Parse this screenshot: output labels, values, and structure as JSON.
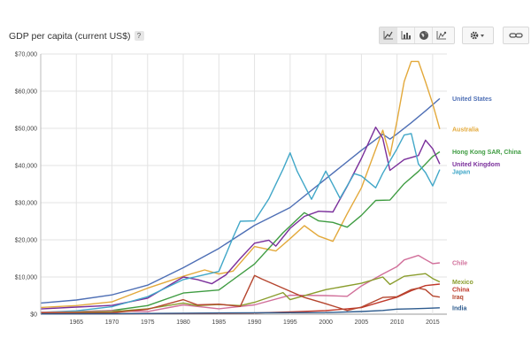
{
  "header": {
    "title": "GDP per capita (current US$)",
    "help": "?"
  },
  "toolbar": {
    "buttons": [
      "line-chart-icon",
      "bar-chart-icon",
      "map-globe-icon",
      "scatter-chart-icon",
      "gear-icon",
      "share-link-icon"
    ]
  },
  "chart_data": {
    "type": "line",
    "title": "GDP per capita (current US$)",
    "xlabel": "",
    "ylabel": "",
    "xlim": [
      1960,
      2017
    ],
    "ylim": [
      0,
      70000
    ],
    "x_ticks": [
      1965,
      1970,
      1975,
      1980,
      1985,
      1990,
      1995,
      2000,
      2005,
      2010,
      2015
    ],
    "y_ticks": [
      0,
      10000,
      20000,
      30000,
      40000,
      50000,
      60000,
      70000
    ],
    "y_tick_labels": [
      "$0",
      "$10,000",
      "$20,000",
      "$30,000",
      "$40,000",
      "$50,000",
      "$60,000",
      "$70,000"
    ],
    "x_tick_labels": [
      "1965",
      "1970",
      "1975",
      "1980",
      "1985",
      "1990",
      "1995",
      "2000",
      "2005",
      "2010",
      "2015"
    ],
    "grid": true,
    "legend": "right (labels at line ends)",
    "series": [
      {
        "name": "United States",
        "color": "#4e6fb5",
        "x": [
          1960,
          1965,
          1970,
          1975,
          1980,
          1985,
          1990,
          1995,
          2000,
          2005,
          2008,
          2009,
          2010,
          2012,
          2014,
          2016
        ],
        "y": [
          3000,
          3800,
          5200,
          7800,
          12500,
          17700,
          23900,
          28700,
          36400,
          44100,
          48400,
          47100,
          48500,
          51500,
          54700,
          58000
        ]
      },
      {
        "name": "Australia",
        "color": "#e3a93b",
        "x": [
          1960,
          1965,
          1970,
          1975,
          1980,
          1983,
          1985,
          1987,
          1990,
          1993,
          1995,
          1997,
          1999,
          2001,
          2003,
          2005,
          2008,
          2009,
          2010,
          2011,
          2012,
          2013,
          2014,
          2015,
          2016
        ],
        "y": [
          1800,
          2300,
          3300,
          7000,
          10200,
          11900,
          10800,
          11600,
          18200,
          17000,
          20300,
          23800,
          21000,
          19600,
          27000,
          34000,
          49500,
          42600,
          52000,
          62600,
          68000,
          68000,
          62500,
          56600,
          49800
        ]
      },
      {
        "name": "Hong Kong SAR, China",
        "color": "#3f9c42",
        "x": [
          1960,
          1965,
          1970,
          1975,
          1980,
          1985,
          1990,
          1994,
          1997,
          1999,
          2001,
          2003,
          2005,
          2007,
          2009,
          2011,
          2013,
          2015,
          2016
        ],
        "y": [
          500,
          700,
          1000,
          2300,
          5700,
          6500,
          13500,
          21900,
          27300,
          25100,
          24700,
          23400,
          26600,
          30600,
          30700,
          35100,
          38400,
          42400,
          43700
        ]
      },
      {
        "name": "United Kingdom",
        "color": "#7a2f9b",
        "x": [
          1960,
          1965,
          1970,
          1975,
          1980,
          1982,
          1984,
          1986,
          1988,
          1990,
          1992,
          1993,
          1995,
          1997,
          1999,
          2001,
          2003,
          2005,
          2007,
          2008,
          2009,
          2011,
          2013,
          2014,
          2015,
          2016
        ],
        "y": [
          1400,
          1900,
          2350,
          4300,
          10000,
          9300,
          8200,
          10600,
          15000,
          19100,
          19900,
          18300,
          23100,
          26300,
          27700,
          27500,
          34400,
          41900,
          50300,
          47300,
          38700,
          41600,
          42700,
          46800,
          44500,
          40400
        ]
      },
      {
        "name": "Japan",
        "color": "#41a7c8",
        "x": [
          1960,
          1965,
          1970,
          1975,
          1980,
          1985,
          1987,
          1988,
          1990,
          1992,
          1994,
          1995,
          1996,
          1998,
          2000,
          2002,
          2004,
          2005,
          2007,
          2008,
          2010,
          2011,
          2012,
          2013,
          2014,
          2015,
          2016
        ],
        "y": [
          500,
          900,
          2000,
          4700,
          9300,
          11500,
          20700,
          25000,
          25100,
          31000,
          39000,
          43400,
          38400,
          30900,
          38500,
          31200,
          37800,
          37200,
          34000,
          37900,
          44500,
          48200,
          48600,
          40400,
          38100,
          34500,
          38900
        ]
      },
      {
        "name": "Chile",
        "color": "#d16f9a",
        "x": [
          1960,
          1965,
          1970,
          1975,
          1980,
          1985,
          1990,
          1995,
          2000,
          2003,
          2005,
          2008,
          2010,
          2011,
          2013,
          2014,
          2015,
          2016
        ],
        "y": [
          550,
          650,
          950,
          700,
          2500,
          1450,
          2500,
          5100,
          5000,
          4800,
          7600,
          10800,
          12800,
          14600,
          15800,
          14700,
          13600,
          13800
        ]
      },
      {
        "name": "Mexico",
        "color": "#8a9d2d",
        "x": [
          1960,
          1965,
          1970,
          1975,
          1980,
          1982,
          1985,
          1988,
          1990,
          1994,
          1995,
          2000,
          2005,
          2008,
          2009,
          2011,
          2014,
          2015,
          2016
        ],
        "y": [
          350,
          500,
          700,
          1450,
          3000,
          2300,
          2600,
          2300,
          3200,
          5800,
          3900,
          6600,
          8300,
          10000,
          8000,
          10200,
          10900,
          9600,
          8700
        ]
      },
      {
        "name": "China",
        "color": "#c0392b",
        "x": [
          1960,
          1970,
          1980,
          1990,
          1995,
          2000,
          2005,
          2008,
          2010,
          2012,
          2014,
          2016
        ],
        "y": [
          90,
          110,
          200,
          320,
          610,
          960,
          1750,
          3470,
          4560,
          6300,
          7700,
          8100
        ]
      },
      {
        "name": "Iraq",
        "color": "#b5452e",
        "x": [
          1960,
          1970,
          1975,
          1980,
          1982,
          1985,
          1988,
          1990,
          1991,
          1994,
          1997,
          2000,
          2003,
          2005,
          2008,
          2010,
          2012,
          2013,
          2014,
          2015,
          2016
        ],
        "y": [
          300,
          400,
          1300,
          3900,
          2500,
          2700,
          2100,
          10400,
          9500,
          7000,
          4500,
          2800,
          1000,
          1900,
          4500,
          4700,
          6600,
          7000,
          6600,
          4900,
          4600
        ]
      },
      {
        "name": "India",
        "color": "#2d5b8e",
        "x": [
          1960,
          1970,
          1980,
          1990,
          2000,
          2005,
          2008,
          2010,
          2012,
          2014,
          2016
        ],
        "y": [
          80,
          110,
          270,
          370,
          440,
          710,
          1000,
          1350,
          1450,
          1570,
          1710
        ]
      }
    ]
  }
}
